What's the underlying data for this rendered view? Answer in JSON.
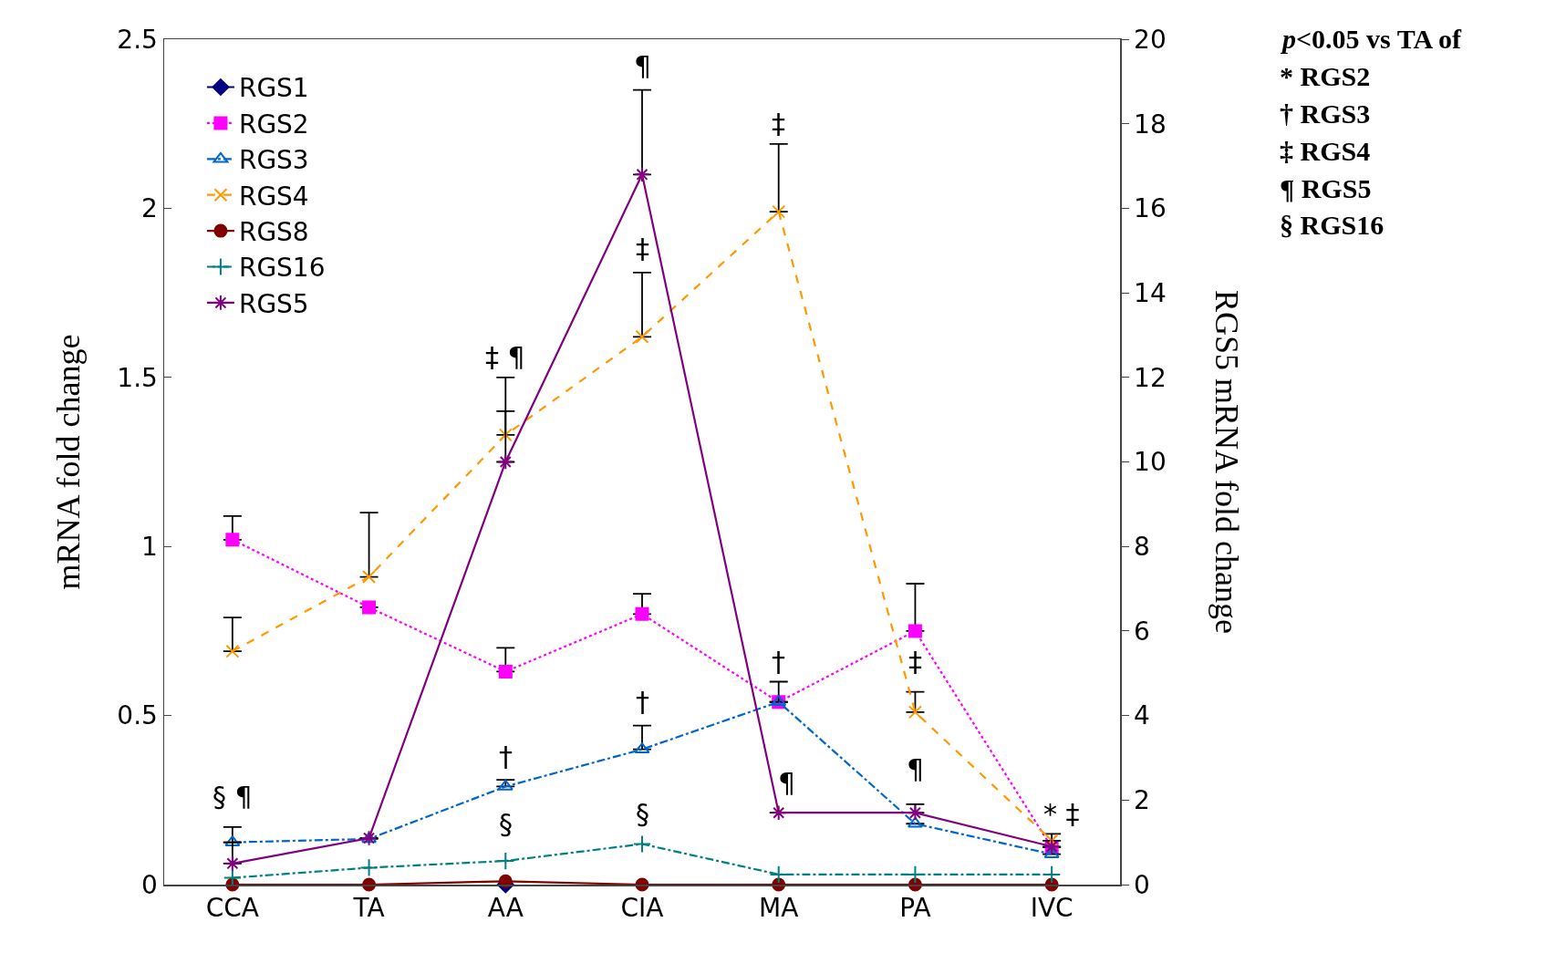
{
  "chart_data": {
    "type": "line",
    "xlabel": null,
    "ylabel": "mRNA fold change",
    "y2label": "RGS5 mRNA fold change",
    "categories": [
      "CCA",
      "TA",
      "AA",
      "CIA",
      "MA",
      "PA",
      "IVC"
    ],
    "ylim": [
      0,
      2.5
    ],
    "yticks": [
      0,
      0.5,
      1,
      1.5,
      2,
      2.5
    ],
    "y2lim": [
      0,
      20
    ],
    "y2ticks": [
      0,
      2,
      4,
      6,
      8,
      10,
      12,
      14,
      16,
      18,
      20
    ],
    "grid": false,
    "legend": "top left",
    "series": [
      {
        "name": "RGS1",
        "color": "#000080",
        "marker": "diamond",
        "line_style": "solid",
        "values": [
          null,
          null,
          0,
          null,
          null,
          null,
          null
        ]
      },
      {
        "name": "RGS2",
        "color": "#ff00ff",
        "marker": "square",
        "line_style": "dotted",
        "values": [
          1.02,
          0.82,
          0.63,
          0.8,
          0.54,
          0.75,
          0.11
        ],
        "errors": [
          [
            1.02,
            1.09
          ],
          null,
          [
            0.63,
            0.7
          ],
          [
            0.8,
            0.86
          ],
          null,
          [
            0.75,
            0.89
          ],
          null
        ]
      },
      {
        "name": "RGS3",
        "color": "#0066cc",
        "marker": "triangle",
        "line_style": "dashdot",
        "values": [
          0.125,
          0.135,
          0.29,
          0.4,
          0.54,
          0.18,
          0.09
        ],
        "errors": [
          [
            0.125,
            0.17
          ],
          null,
          [
            0.29,
            0.31
          ],
          [
            0.4,
            0.47
          ],
          [
            0.54,
            0.6
          ],
          null,
          null
        ]
      },
      {
        "name": "RGS4",
        "color": "#ff9900",
        "marker": "x",
        "line_style": "dashed",
        "values": [
          0.69,
          0.91,
          1.33,
          1.62,
          1.99,
          0.51,
          0.13
        ],
        "errors": [
          [
            0.69,
            0.79
          ],
          [
            0.91,
            1.1
          ],
          [
            1.33,
            1.5
          ],
          [
            1.62,
            1.81
          ],
          [
            1.99,
            2.19
          ],
          [
            0.51,
            0.57
          ],
          [
            0.13,
            0.15
          ]
        ]
      },
      {
        "name": "RGS8",
        "color": "#800000",
        "marker": "circle",
        "line_style": "solid",
        "values": [
          0,
          0,
          0.01,
          0,
          0,
          0,
          0
        ]
      },
      {
        "name": "RGS16",
        "color": "#008080",
        "marker": "plus",
        "line_style": "dashdot",
        "values": [
          0.02,
          0.05,
          0.07,
          0.12,
          0.03,
          0.03,
          0.03
        ]
      },
      {
        "name": "RGS5",
        "color": "#800080",
        "marker": "cross",
        "line_style": "solid",
        "axis": "y2",
        "values": [
          0.5,
          1.1,
          10,
          16.8,
          1.7,
          1.7,
          0.9
        ],
        "errors": [
          [
            0.5,
            1
          ],
          null,
          [
            10,
            11.2
          ],
          [
            16.8,
            18.8
          ],
          null,
          [
            1.7,
            1.9
          ],
          null
        ]
      }
    ],
    "annotations": [
      "§ ¶",
      "‡ ¶",
      "†",
      "§",
      "¶",
      "‡",
      "†",
      "§",
      "‡",
      "†",
      "¶",
      "‡",
      "¶",
      "* ‡",
      "p<0.05 vs TA of",
      "* RGS2",
      "† RGS3",
      "‡ RGS4",
      "¶ RGS5",
      "§ RGS16"
    ]
  }
}
